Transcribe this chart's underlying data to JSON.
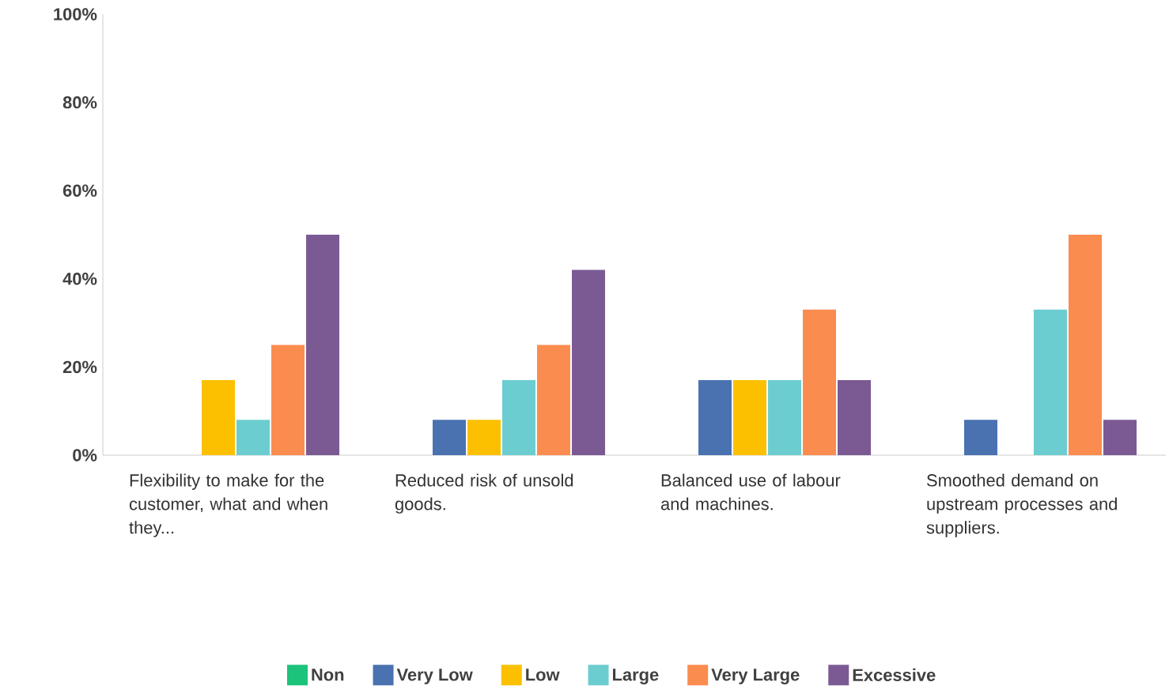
{
  "chart_data": {
    "type": "bar",
    "categories": [
      "Flexibility to make for the customer, what and when they...",
      "Reduced risk of unsold goods.",
      "Balanced use of labour and machines.",
      "Smoothed demand on upstream processes and suppliers."
    ],
    "series": [
      {
        "name": "Non",
        "color": "#1cc37a",
        "values": [
          0,
          0,
          0,
          0
        ]
      },
      {
        "name": "Very Low",
        "color": "#4a72b0",
        "values": [
          0,
          8,
          17,
          8
        ]
      },
      {
        "name": "Low",
        "color": "#fcc000",
        "values": [
          17,
          8,
          17,
          0
        ]
      },
      {
        "name": "Large",
        "color": "#6ccdd0",
        "values": [
          8,
          17,
          17,
          33
        ]
      },
      {
        "name": "Very Large",
        "color": "#fb8c4f",
        "values": [
          25,
          25,
          33,
          50
        ]
      },
      {
        "name": "Excessive",
        "color": "#7b5a94",
        "values": [
          50,
          42,
          17,
          8
        ]
      }
    ],
    "ylim": [
      0,
      100
    ],
    "yticks": [
      {
        "value": 0,
        "label": "0%"
      },
      {
        "value": 20,
        "label": "20%"
      },
      {
        "value": 40,
        "label": "40%"
      },
      {
        "value": 60,
        "label": "60%"
      },
      {
        "value": 80,
        "label": "80%"
      },
      {
        "value": 100,
        "label": "100%"
      }
    ],
    "legend": "bottom"
  }
}
